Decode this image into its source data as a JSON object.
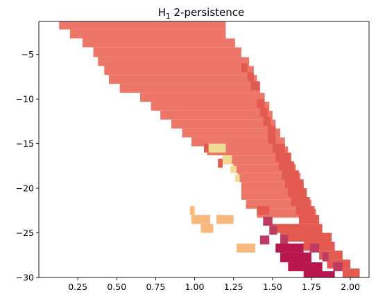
{
  "chart_data": {
    "type": "heatmap",
    "title": "H",
    "title_subscript": "1",
    "title_suffix": " 2-persistence",
    "xlabel": "",
    "ylabel": "",
    "xlim": [
      0.0,
      2.12
    ],
    "ylim": [
      -30,
      -1.3
    ],
    "grid": false,
    "legend": "none",
    "x_ticks": [
      {
        "value": 0.25,
        "label": "0.25"
      },
      {
        "value": 0.5,
        "label": "0.50"
      },
      {
        "value": 0.75,
        "label": "0.75"
      },
      {
        "value": 1.0,
        "label": "1.00"
      },
      {
        "value": 1.25,
        "label": "1.25"
      },
      {
        "value": 1.5,
        "label": "1.50"
      },
      {
        "value": 1.75,
        "label": "1.75"
      },
      {
        "value": 2.0,
        "label": "2.00"
      }
    ],
    "y_ticks": [
      {
        "value": -5,
        "label": "−5"
      },
      {
        "value": -10,
        "label": "−10"
      },
      {
        "value": -15,
        "label": "−15"
      },
      {
        "value": -20,
        "label": "−20"
      },
      {
        "value": -25,
        "label": "−25"
      },
      {
        "value": -30,
        "label": "−30"
      }
    ],
    "colors": {
      "main": "#ec7769",
      "medium": "#e25a50",
      "dark": "#be3c62",
      "darkest": "#b8164e",
      "orange": "#f7b980",
      "yellow": "#f0dc95"
    },
    "cells": [
      {
        "x0": 0.13,
        "x1": 1.2,
        "y0": -2.2,
        "y1": -1.3,
        "level": "main"
      },
      {
        "x0": 0.2,
        "x1": 1.2,
        "y0": -3.2,
        "y1": -2.2,
        "level": "main"
      },
      {
        "x0": 0.28,
        "x1": 1.26,
        "y0": -4.2,
        "y1": -3.2,
        "level": "main"
      },
      {
        "x0": 0.35,
        "x1": 1.3,
        "y0": -5.3,
        "y1": -4.2,
        "level": "main"
      },
      {
        "x0": 0.38,
        "x1": 1.35,
        "y0": -6.3,
        "y1": -5.3,
        "level": "main"
      },
      {
        "x0": 0.42,
        "x1": 1.38,
        "y0": -7.3,
        "y1": -6.3,
        "level": "main"
      },
      {
        "x0": 0.45,
        "x1": 1.4,
        "y0": -8.3,
        "y1": -7.3,
        "level": "main"
      },
      {
        "x0": 0.52,
        "x1": 1.42,
        "y0": -9.3,
        "y1": -8.3,
        "level": "main"
      },
      {
        "x0": 0.65,
        "x1": 1.45,
        "y0": -10.3,
        "y1": -9.3,
        "level": "main"
      },
      {
        "x0": 0.72,
        "x1": 1.48,
        "y0": -11.3,
        "y1": -10.3,
        "level": "main"
      },
      {
        "x0": 0.78,
        "x1": 1.5,
        "y0": -12.3,
        "y1": -11.3,
        "level": "main"
      },
      {
        "x0": 0.85,
        "x1": 1.52,
        "y0": -13.3,
        "y1": -12.3,
        "level": "main"
      },
      {
        "x0": 0.92,
        "x1": 1.55,
        "y0": -14.3,
        "y1": -13.3,
        "level": "main"
      },
      {
        "x0": 0.98,
        "x1": 1.58,
        "y0": -15.3,
        "y1": -14.3,
        "level": "main"
      },
      {
        "x0": 1.08,
        "x1": 1.6,
        "y0": -16.3,
        "y1": -15.3,
        "level": "main"
      },
      {
        "x0": 1.18,
        "x1": 1.62,
        "y0": -17.3,
        "y1": -16.3,
        "level": "main"
      },
      {
        "x0": 1.25,
        "x1": 1.65,
        "y0": -18.3,
        "y1": -17.3,
        "level": "main"
      },
      {
        "x0": 1.28,
        "x1": 1.68,
        "y0": -19.3,
        "y1": -18.3,
        "level": "main"
      },
      {
        "x0": 1.3,
        "x1": 1.7,
        "y0": -20.3,
        "y1": -19.3,
        "level": "main"
      },
      {
        "x0": 1.3,
        "x1": 1.72,
        "y0": -21.3,
        "y1": -20.3,
        "level": "main"
      },
      {
        "x0": 1.33,
        "x1": 1.75,
        "y0": -22.3,
        "y1": -21.3,
        "level": "main"
      },
      {
        "x0": 1.4,
        "x1": 1.78,
        "y0": -23.3,
        "y1": -22.3,
        "level": "main"
      },
      {
        "x0": 1.3,
        "x1": 1.34,
        "y0": -7.0,
        "y1": -6.0,
        "level": "medium"
      },
      {
        "x0": 1.34,
        "x1": 1.38,
        "y0": -8.0,
        "y1": -7.0,
        "level": "medium"
      },
      {
        "x0": 1.36,
        "x1": 1.42,
        "y0": -9.0,
        "y1": -8.0,
        "level": "medium"
      },
      {
        "x0": 1.4,
        "x1": 1.45,
        "y0": -11.0,
        "y1": -10.0,
        "level": "medium"
      },
      {
        "x0": 1.42,
        "x1": 1.47,
        "y0": -12.0,
        "y1": -11.0,
        "level": "medium"
      },
      {
        "x0": 1.44,
        "x1": 1.49,
        "y0": -13.0,
        "y1": -12.0,
        "level": "medium"
      },
      {
        "x0": 1.47,
        "x1": 1.52,
        "y0": -14.0,
        "y1": -13.0,
        "level": "medium"
      },
      {
        "x0": 1.47,
        "x1": 1.52,
        "y0": -15.0,
        "y1": -14.0,
        "level": "medium"
      },
      {
        "x0": 1.5,
        "x1": 1.58,
        "y0": -16.0,
        "y1": -15.0,
        "level": "medium"
      },
      {
        "x0": 1.52,
        "x1": 1.62,
        "y0": -17.0,
        "y1": -16.0,
        "level": "medium"
      },
      {
        "x0": 1.54,
        "x1": 1.64,
        "y0": -18.0,
        "y1": -17.0,
        "level": "medium"
      },
      {
        "x0": 1.56,
        "x1": 1.67,
        "y0": -19.0,
        "y1": -18.0,
        "level": "medium"
      },
      {
        "x0": 1.58,
        "x1": 1.7,
        "y0": -20.0,
        "y1": -19.0,
        "level": "medium"
      },
      {
        "x0": 1.6,
        "x1": 1.72,
        "y0": -21.0,
        "y1": -20.0,
        "level": "medium"
      },
      {
        "x0": 1.62,
        "x1": 1.74,
        "y0": -22.0,
        "y1": -21.0,
        "level": "medium"
      },
      {
        "x0": 1.65,
        "x1": 1.77,
        "y0": -23.0,
        "y1": -22.0,
        "level": "medium"
      },
      {
        "x0": 1.67,
        "x1": 1.8,
        "y0": -24.0,
        "y1": -23.0,
        "level": "medium"
      },
      {
        "x0": 1.5,
        "x1": 1.82,
        "y0": -25.0,
        "y1": -24.0,
        "level": "medium"
      },
      {
        "x0": 1.55,
        "x1": 1.88,
        "y0": -26.0,
        "y1": -25.0,
        "level": "medium"
      },
      {
        "x0": 1.7,
        "x1": 1.9,
        "y0": -27.0,
        "y1": -26.0,
        "level": "medium"
      },
      {
        "x0": 1.8,
        "x1": 1.95,
        "y0": -28.0,
        "y1": -27.0,
        "level": "medium"
      },
      {
        "x0": 1.85,
        "x1": 2.0,
        "y0": -29.0,
        "y1": -28.0,
        "level": "medium"
      },
      {
        "x0": 1.95,
        "x1": 2.06,
        "y0": -30.0,
        "y1": -29.0,
        "level": "medium"
      },
      {
        "x0": 1.06,
        "x1": 1.09,
        "y0": -16.0,
        "y1": -15.0,
        "level": "medium"
      },
      {
        "x0": 1.15,
        "x1": 1.18,
        "y0": -17.7,
        "y1": -16.7,
        "level": "medium"
      },
      {
        "x0": 1.4,
        "x1": 1.48,
        "y0": -23.0,
        "y1": -22.0,
        "level": "medium"
      },
      {
        "x0": 1.44,
        "x1": 1.5,
        "y0": -24.2,
        "y1": -23.2,
        "level": "dark"
      },
      {
        "x0": 1.48,
        "x1": 1.53,
        "y0": -25.2,
        "y1": -24.2,
        "level": "dark"
      },
      {
        "x0": 1.42,
        "x1": 1.48,
        "y0": -26.3,
        "y1": -25.3,
        "level": "dark"
      },
      {
        "x0": 1.55,
        "x1": 1.6,
        "y0": -26.2,
        "y1": -25.2,
        "level": "dark"
      },
      {
        "x0": 1.74,
        "x1": 1.8,
        "y0": -27.2,
        "y1": -26.2,
        "level": "dark"
      },
      {
        "x0": 1.82,
        "x1": 1.86,
        "y0": -28.2,
        "y1": -27.2,
        "level": "dark"
      },
      {
        "x0": 1.89,
        "x1": 1.95,
        "y0": -29.3,
        "y1": -28.3,
        "level": "dark"
      },
      {
        "x0": 1.64,
        "x1": 1.7,
        "y0": -29.3,
        "y1": -28.3,
        "level": "dark"
      },
      {
        "x0": 1.52,
        "x1": 1.7,
        "y0": -27.2,
        "y1": -26.2,
        "level": "darkest"
      },
      {
        "x0": 1.55,
        "x1": 1.75,
        "y0": -28.3,
        "y1": -27.2,
        "level": "darkest"
      },
      {
        "x0": 1.6,
        "x1": 1.82,
        "y0": -29.3,
        "y1": -28.3,
        "level": "darkest"
      },
      {
        "x0": 1.7,
        "x1": 1.9,
        "y0": -30.0,
        "y1": -29.3,
        "level": "darkest"
      },
      {
        "x0": 0.97,
        "x1": 1.0,
        "y0": -23.0,
        "y1": -22.0,
        "level": "orange"
      },
      {
        "x0": 0.98,
        "x1": 1.1,
        "y0": -24.0,
        "y1": -23.0,
        "level": "orange"
      },
      {
        "x0": 1.04,
        "x1": 1.12,
        "y0": -25.0,
        "y1": -24.0,
        "level": "orange"
      },
      {
        "x0": 1.14,
        "x1": 1.25,
        "y0": -24.0,
        "y1": -23.0,
        "level": "orange"
      },
      {
        "x0": 1.27,
        "x1": 1.39,
        "y0": -27.2,
        "y1": -26.2,
        "level": "orange"
      },
      {
        "x0": 1.09,
        "x1": 1.2,
        "y0": -16.0,
        "y1": -15.0,
        "level": "yellow"
      },
      {
        "x0": 1.18,
        "x1": 1.24,
        "y0": -17.3,
        "y1": -16.3,
        "level": "yellow"
      },
      {
        "x0": 1.23,
        "x1": 1.27,
        "y0": -18.3,
        "y1": -17.5,
        "level": "yellow"
      },
      {
        "x0": 1.26,
        "x1": 1.29,
        "y0": -19.3,
        "y1": -18.5,
        "level": "yellow"
      }
    ]
  }
}
